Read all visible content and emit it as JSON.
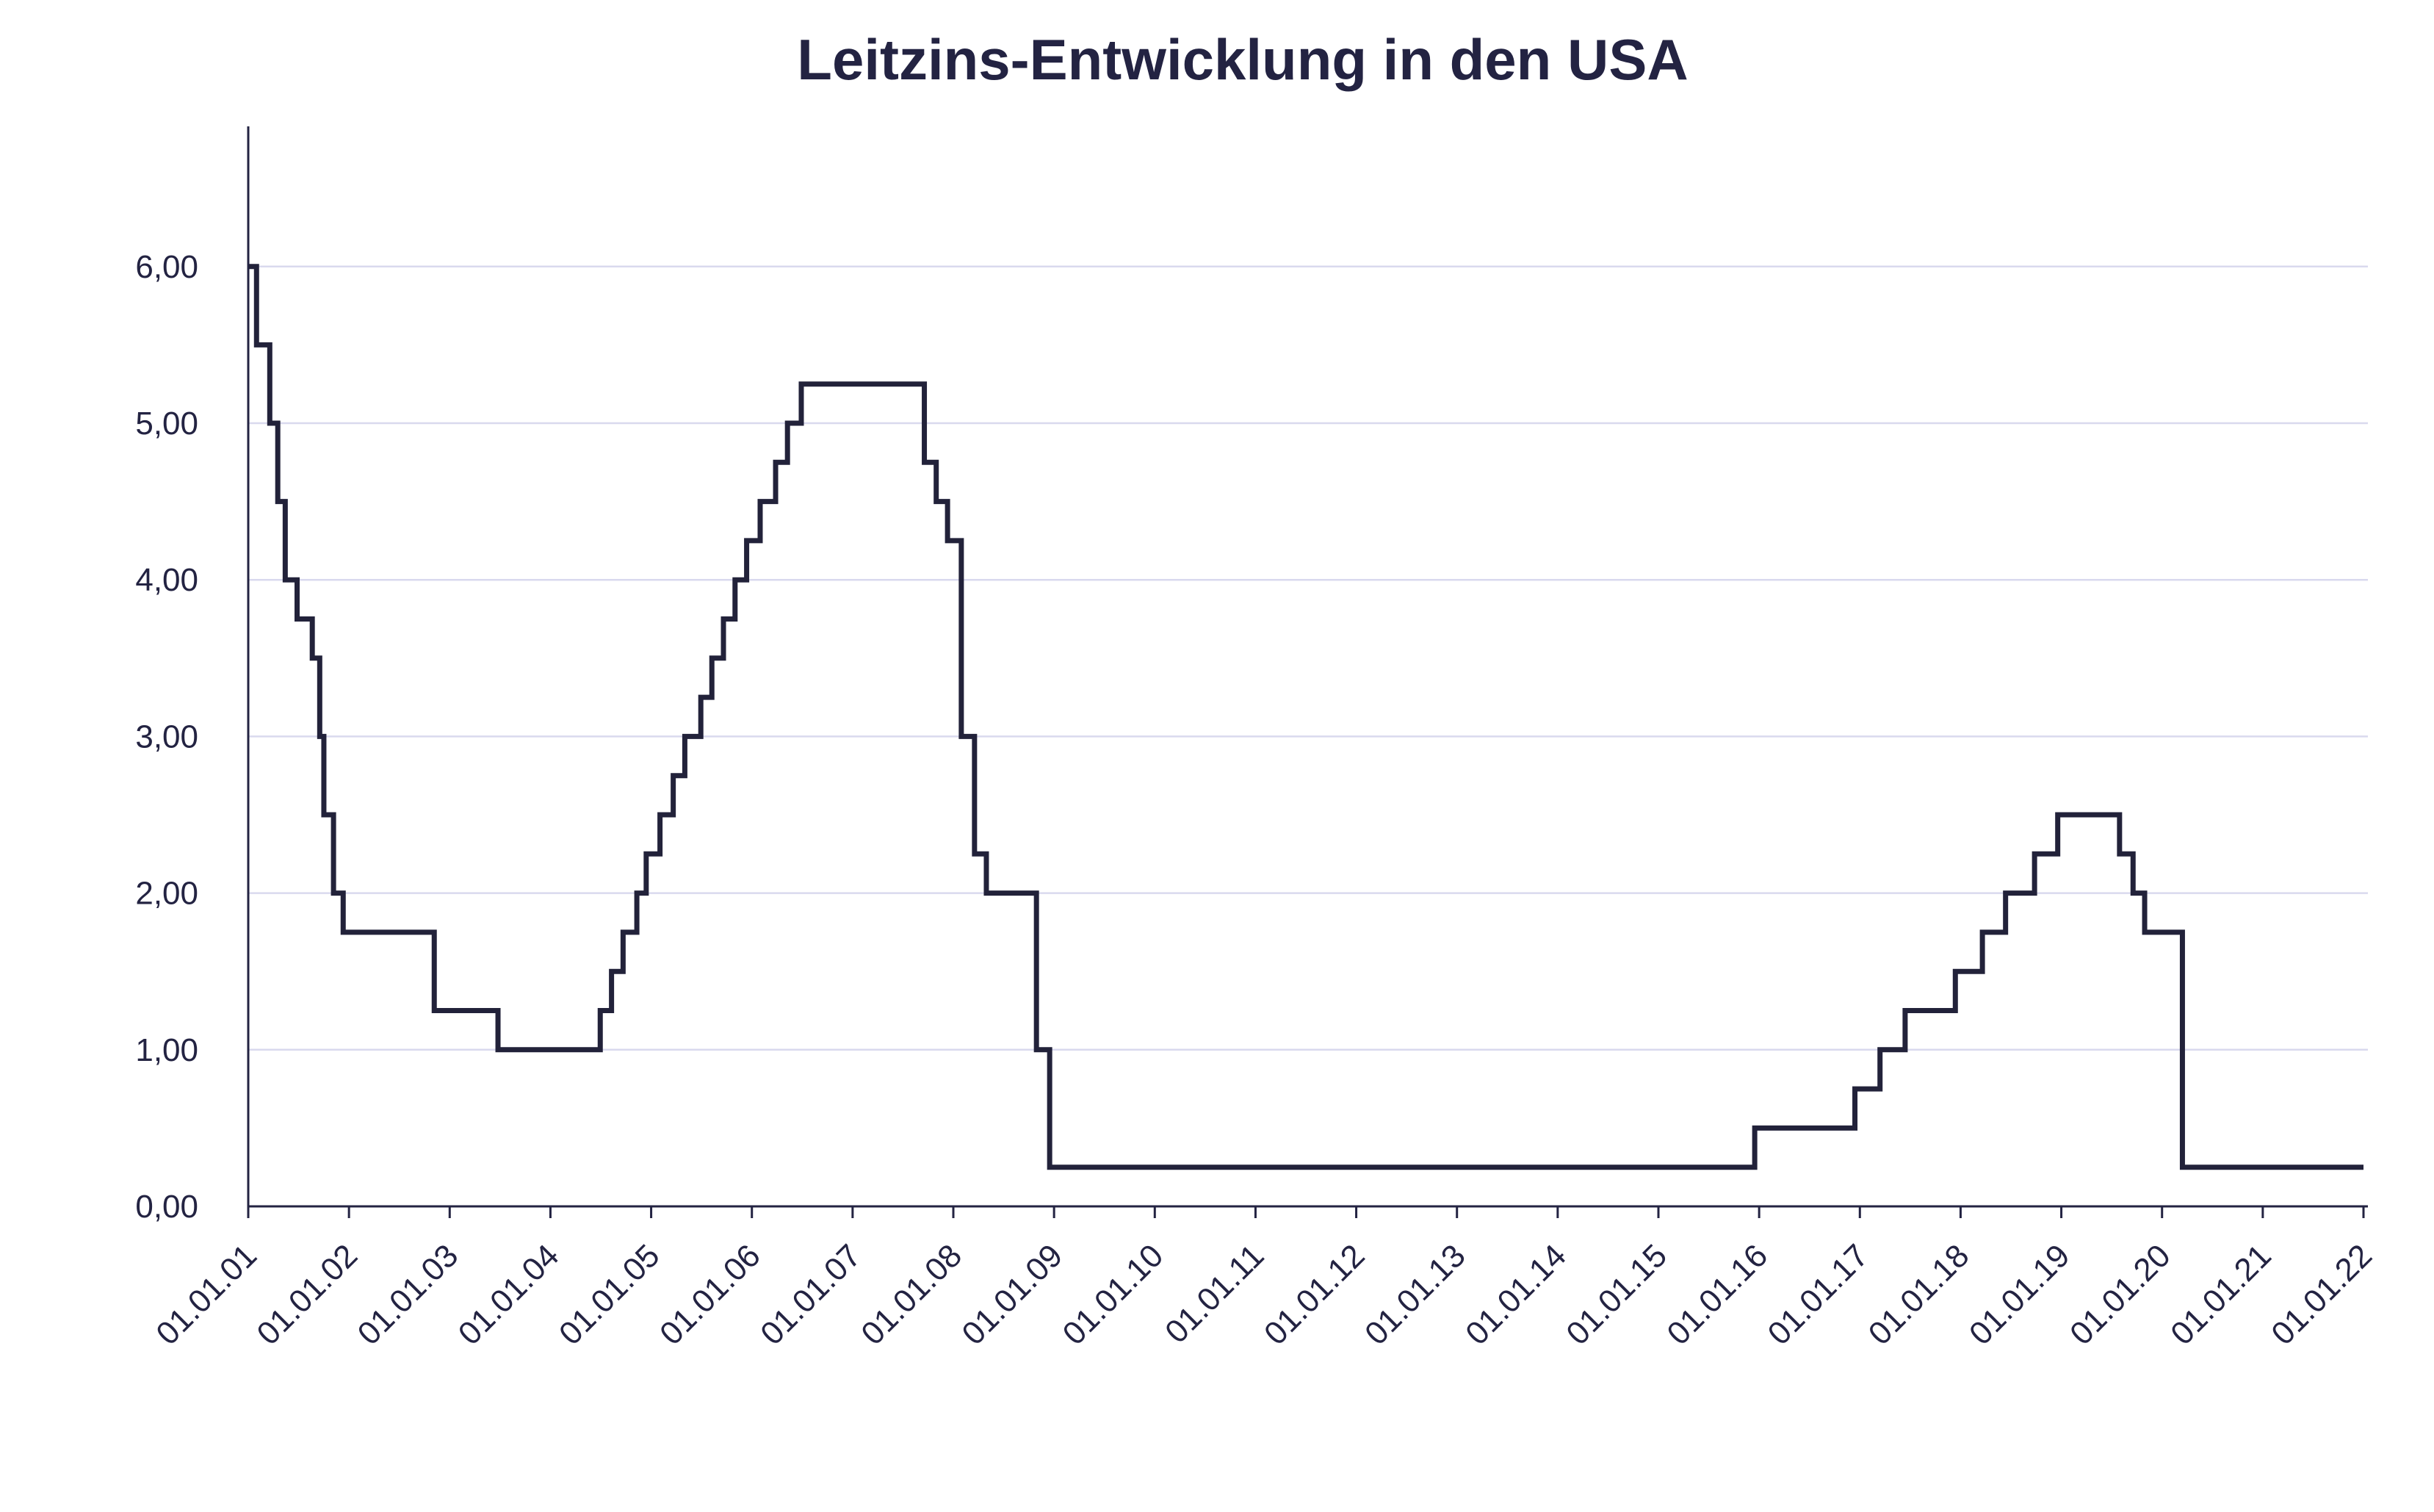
{
  "chart_data": {
    "type": "line",
    "step": true,
    "title": "Leitzins-Entwicklung in den USA",
    "xlabel": "",
    "ylabel": "",
    "ylim": [
      0,
      6.9
    ],
    "yticks": [
      0,
      1,
      2,
      3,
      4,
      5,
      6
    ],
    "ytick_labels": [
      "0,00",
      "1,00",
      "2,00",
      "3,00",
      "4,00",
      "5,00",
      "6,00"
    ],
    "xlim": [
      "2001-01-01",
      "2022-01-01"
    ],
    "xtick_labels": [
      "01.01.01",
      "01.01.02",
      "01.01.03",
      "01.01.04",
      "01.01.05",
      "01.01.06",
      "01.01.07",
      "01.01.08",
      "01.01.09",
      "01.01.10",
      "01.01.11",
      "01.01.12",
      "01.01.13",
      "01.01.14",
      "01.01.15",
      "01.01.16",
      "01.01.17",
      "01.01.18",
      "01.01.19",
      "01.01.20",
      "01.01.21",
      "01.01.22"
    ],
    "grid": true,
    "line_color": "#22223a",
    "grid_color": "#d9d9ee",
    "series": [
      {
        "name": "Leitzins",
        "points": [
          [
            "2001-01-03",
            6.0
          ],
          [
            "2001-01-31",
            5.5
          ],
          [
            "2001-03-20",
            5.0
          ],
          [
            "2001-04-18",
            4.5
          ],
          [
            "2001-05-15",
            4.0
          ],
          [
            "2001-06-27",
            3.75
          ],
          [
            "2001-08-21",
            3.5
          ],
          [
            "2001-09-17",
            3.0
          ],
          [
            "2001-10-02",
            2.5
          ],
          [
            "2001-11-06",
            2.0
          ],
          [
            "2001-12-11",
            1.75
          ],
          [
            "2002-11-06",
            1.25
          ],
          [
            "2003-06-25",
            1.0
          ],
          [
            "2004-06-30",
            1.25
          ],
          [
            "2004-08-10",
            1.5
          ],
          [
            "2004-09-21",
            1.75
          ],
          [
            "2004-11-10",
            2.0
          ],
          [
            "2004-12-14",
            2.25
          ],
          [
            "2005-02-02",
            2.5
          ],
          [
            "2005-03-22",
            2.75
          ],
          [
            "2005-05-03",
            3.0
          ],
          [
            "2005-06-30",
            3.25
          ],
          [
            "2005-08-09",
            3.5
          ],
          [
            "2005-09-20",
            3.75
          ],
          [
            "2005-11-01",
            4.0
          ],
          [
            "2005-12-13",
            4.25
          ],
          [
            "2006-01-31",
            4.5
          ],
          [
            "2006-03-28",
            4.75
          ],
          [
            "2006-05-10",
            5.0
          ],
          [
            "2006-06-29",
            5.25
          ],
          [
            "2007-09-18",
            4.75
          ],
          [
            "2007-10-31",
            4.5
          ],
          [
            "2007-12-11",
            4.25
          ],
          [
            "2008-01-30",
            3.0
          ],
          [
            "2008-03-18",
            2.25
          ],
          [
            "2008-04-30",
            2.0
          ],
          [
            "2008-10-29",
            1.0
          ],
          [
            "2008-12-16",
            0.25
          ],
          [
            "2015-12-16",
            0.5
          ],
          [
            "2016-12-14",
            0.75
          ],
          [
            "2017-03-15",
            1.0
          ],
          [
            "2017-06-14",
            1.25
          ],
          [
            "2017-12-13",
            1.5
          ],
          [
            "2018-03-21",
            1.75
          ],
          [
            "2018-06-13",
            2.0
          ],
          [
            "2018-09-26",
            2.25
          ],
          [
            "2018-12-19",
            2.5
          ],
          [
            "2019-07-31",
            2.25
          ],
          [
            "2019-09-18",
            2.0
          ],
          [
            "2019-10-30",
            1.75
          ],
          [
            "2020-03-15",
            0.25
          ],
          [
            "2022-01-01",
            0.25
          ]
        ]
      }
    ]
  }
}
